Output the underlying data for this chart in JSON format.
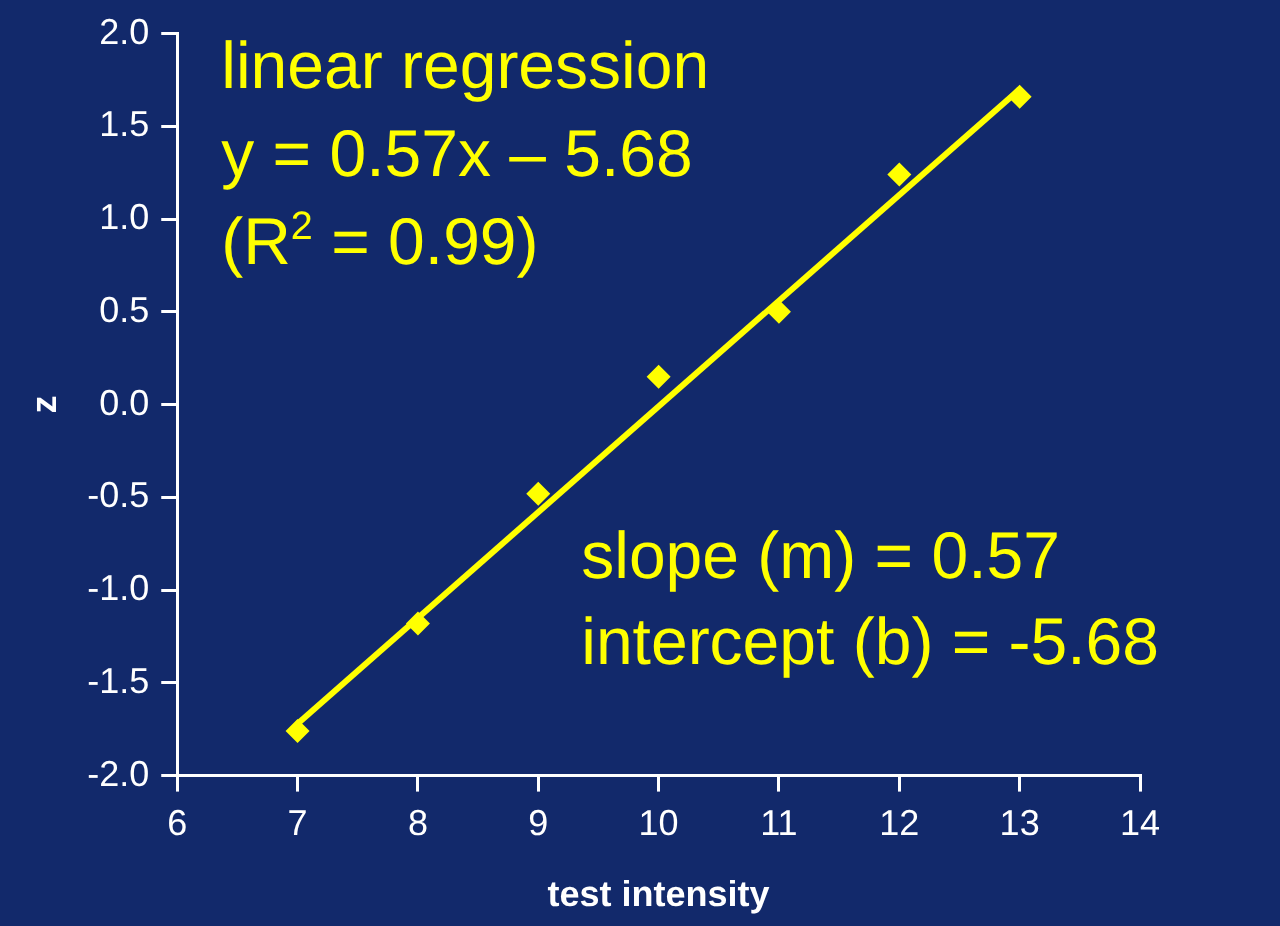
{
  "chart_data": {
    "type": "scatter",
    "xlabel": "test intensity",
    "ylabel": "z",
    "x": [
      7,
      8,
      9,
      10,
      11,
      12,
      13
    ],
    "series": [
      {
        "color": "#ffff00",
        "marker": "diamond",
        "values": [
          -1.76,
          -1.18,
          -0.48,
          0.15,
          0.5,
          1.24,
          1.66
        ]
      },
      {
        "type": "line",
        "color": "#ffff00",
        "marker": "none",
        "line_style": "solid",
        "x": [
          7,
          13
        ],
        "values": [
          -1.72,
          1.7
        ]
      }
    ],
    "xlim": [
      6,
      14
    ],
    "xticks": [
      6,
      7,
      8,
      9,
      10,
      11,
      12,
      13,
      14
    ],
    "ylim": [
      -2,
      2
    ],
    "yticks": [
      {
        "value": -2,
        "label": "-2.0"
      },
      {
        "value": -1.5,
        "label": "-1.5"
      },
      {
        "value": -1,
        "label": "-1.0"
      },
      {
        "value": -0.5,
        "label": "-0.5"
      },
      {
        "value": 0,
        "label": "0.0"
      },
      {
        "value": 0.5,
        "label": "0.5"
      },
      {
        "value": 1,
        "label": "1.0"
      },
      {
        "value": 1.5,
        "label": "1.5"
      },
      {
        "value": 2,
        "label": "2.0"
      }
    ],
    "grid": false,
    "legend": false,
    "annotations": [
      "linear regression",
      "y = 0.57x – 5.68",
      "(R$^{2}$ = 0.99)",
      "slope (m) = 0.57",
      "intercept (b) = -5.68"
    ]
  }
}
